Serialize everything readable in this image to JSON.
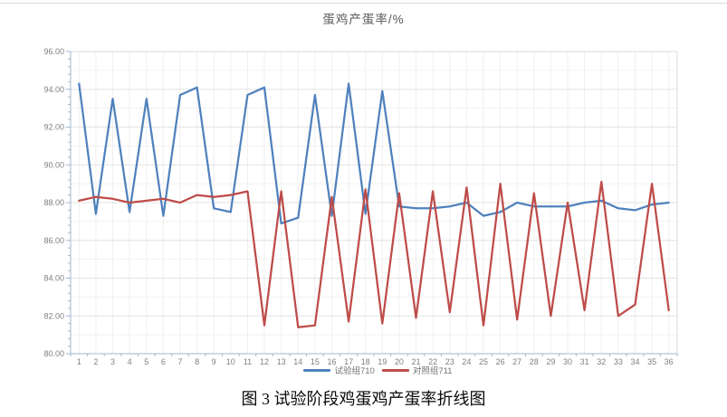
{
  "figure": {
    "caption": "图 3 试验阶段鸡蛋鸡产蛋率折线图"
  },
  "chart_data": {
    "type": "line",
    "title": "蛋鸡产蛋率/%",
    "categories": [
      1,
      2,
      3,
      4,
      5,
      6,
      7,
      8,
      9,
      10,
      11,
      12,
      13,
      14,
      15,
      16,
      17,
      18,
      19,
      20,
      21,
      22,
      23,
      24,
      25,
      26,
      27,
      28,
      29,
      30,
      31,
      32,
      33,
      34,
      35,
      36
    ],
    "series": [
      {
        "name": "试验组710",
        "color": "#4F81BD",
        "values": [
          94.3,
          87.4,
          93.5,
          87.5,
          93.5,
          87.3,
          93.7,
          94.1,
          87.7,
          87.5,
          93.7,
          94.1,
          86.9,
          87.2,
          93.7,
          87.3,
          94.3,
          87.4,
          93.9,
          87.8,
          87.7,
          87.7,
          87.8,
          88.0,
          87.3,
          87.5,
          88.0,
          87.8,
          87.8,
          87.8,
          88.0,
          88.1,
          87.7,
          87.6,
          87.9,
          88.0
        ]
      },
      {
        "name": "对照组711",
        "color": "#BE4B48",
        "values": [
          88.1,
          88.3,
          88.2,
          88.0,
          88.1,
          88.2,
          88.0,
          88.4,
          88.3,
          88.4,
          88.6,
          81.5,
          88.6,
          81.4,
          81.5,
          88.3,
          81.7,
          88.7,
          81.6,
          88.5,
          81.9,
          88.6,
          82.2,
          88.8,
          81.5,
          89.0,
          81.8,
          88.5,
          82.0,
          88.0,
          82.3,
          89.1,
          82.0,
          82.6,
          89.0,
          82.3
        ]
      }
    ],
    "xlabel": "",
    "ylabel": "",
    "ylim": [
      80,
      96
    ],
    "ytick_step": 2,
    "ygrid_minor_step": 1,
    "ytick_decimals": 2,
    "grid": true,
    "legend_position": "bottom"
  },
  "style_colors": {
    "axis_line": "#9FB8D1",
    "major_grid": "#E2E2E2",
    "minor_grid": "#F1F1F1",
    "vertical_grid": "#EFEFEF",
    "plot_border": "#D9D9D9",
    "tick_label": "#7F7F7F",
    "title_text": "#595959"
  }
}
